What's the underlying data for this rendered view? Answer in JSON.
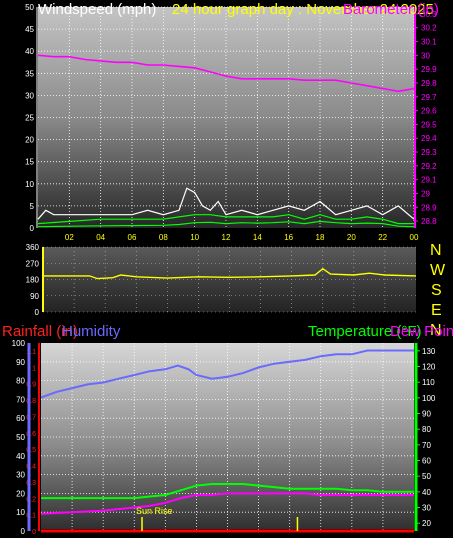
{
  "header": {
    "title_left": "Windspeed (mph)",
    "title_mid": "24 hour graph day : November 24 2025",
    "title_right": "Barometer (in)"
  },
  "compass": [
    "N",
    "W",
    "S",
    "E",
    "N"
  ],
  "lower_titles": {
    "rainfall": "Rainfall (in)",
    "humidity": "Humidity",
    "temperature": "Temperature (°F)",
    "dewpoint": "Dew Point"
  },
  "annotations": {
    "sunrise": "Sun Rise"
  },
  "colors": {
    "windspeed": "#ffffff",
    "gust_lines": "#00ff00",
    "barometer": "#ff00ff",
    "direction": "#ffff00",
    "rainfall": "#ff0000",
    "humidity": "#6a6aff",
    "temperature": "#00ff00",
    "dewpoint": "#ff00ff"
  },
  "chart_data": [
    {
      "type": "line",
      "name": "windspeed-barometer",
      "x_ticks": [
        "02",
        "04",
        "06",
        "08",
        "10",
        "12",
        "14",
        "16",
        "18",
        "20",
        "22",
        "00"
      ],
      "y_left_ticks": [
        0,
        5,
        10,
        15,
        20,
        25,
        30,
        35,
        40,
        45,
        50
      ],
      "y_left_range": [
        0,
        50
      ],
      "y_right_ticks": [
        28.8,
        28.9,
        29,
        29.1,
        29.2,
        29.3,
        29.4,
        29.5,
        29.6,
        29.7,
        29.8,
        29.9,
        30,
        30.1,
        30.2,
        30.3
      ],
      "y_right_range": [
        28.75,
        30.35
      ],
      "series": [
        {
          "axis": "right",
          "points": [
            [
              0,
              30.0
            ],
            [
              1,
              29.99
            ],
            [
              2,
              29.99
            ],
            [
              3,
              29.97
            ],
            [
              4,
              29.96
            ],
            [
              5,
              29.95
            ],
            [
              6,
              29.95
            ],
            [
              7,
              29.93
            ],
            [
              8,
              29.93
            ],
            [
              9,
              29.92
            ],
            [
              10,
              29.91
            ],
            [
              11,
              29.88
            ],
            [
              12,
              29.85
            ],
            [
              13,
              29.83
            ],
            [
              14,
              29.83
            ],
            [
              15,
              29.83
            ],
            [
              16,
              29.83
            ],
            [
              17,
              29.82
            ],
            [
              18,
              29.82
            ],
            [
              19,
              29.82
            ],
            [
              20,
              29.8
            ],
            [
              21,
              29.78
            ],
            [
              22,
              29.76
            ],
            [
              23,
              29.74
            ],
            [
              23.5,
              29.75
            ],
            [
              24,
              29.76
            ]
          ]
        },
        {
          "axis": "left",
          "points": [
            [
              0,
              2
            ],
            [
              0.5,
              4
            ],
            [
              1,
              3
            ],
            [
              2,
              3
            ],
            [
              3,
              3
            ],
            [
              4,
              3
            ],
            [
              5,
              3
            ],
            [
              6,
              3
            ],
            [
              7,
              4
            ],
            [
              8,
              3
            ],
            [
              9,
              4
            ],
            [
              9.5,
              9
            ],
            [
              10,
              8
            ],
            [
              10.5,
              5
            ],
            [
              11,
              4
            ],
            [
              11.5,
              6
            ],
            [
              12,
              3
            ],
            [
              13,
              4
            ],
            [
              14,
              3
            ],
            [
              15,
              4
            ],
            [
              16,
              5
            ],
            [
              17,
              4
            ],
            [
              18,
              6
            ],
            [
              19,
              3
            ],
            [
              20,
              4
            ],
            [
              21,
              5
            ],
            [
              22,
              3
            ],
            [
              22.5,
              4
            ],
            [
              23,
              5
            ],
            [
              24,
              2
            ]
          ]
        },
        {
          "axis": "left",
          "points": [
            [
              0,
              1
            ],
            [
              2,
              1.5
            ],
            [
              4,
              2
            ],
            [
              6,
              2
            ],
            [
              8,
              2
            ],
            [
              9,
              2.5
            ],
            [
              10,
              3
            ],
            [
              11,
              3
            ],
            [
              12,
              2.5
            ],
            [
              13,
              2.5
            ],
            [
              14,
              2.5
            ],
            [
              15,
              2.5
            ],
            [
              16,
              3
            ],
            [
              17,
              2
            ],
            [
              18,
              3
            ],
            [
              19,
              2
            ],
            [
              20,
              2
            ],
            [
              21,
              2.5
            ],
            [
              22,
              2
            ],
            [
              23,
              1
            ],
            [
              24,
              1
            ]
          ]
        },
        {
          "axis": "left",
          "points": [
            [
              0,
              0.3
            ],
            [
              4,
              0.5
            ],
            [
              8,
              0.6
            ],
            [
              9,
              0.8
            ],
            [
              10,
              1.2
            ],
            [
              11,
              1.3
            ],
            [
              12,
              1
            ],
            [
              13,
              1.2
            ],
            [
              14,
              1.1
            ],
            [
              15,
              1.2
            ],
            [
              16,
              1.4
            ],
            [
              17,
              1
            ],
            [
              18,
              1.5
            ],
            [
              19,
              1.2
            ],
            [
              20,
              1
            ],
            [
              21,
              1.1
            ],
            [
              22,
              1
            ],
            [
              23,
              0.4
            ],
            [
              24,
              0.3
            ]
          ]
        }
      ]
    },
    {
      "type": "line",
      "name": "wind-direction",
      "y_ticks": [
        0,
        90,
        180,
        270,
        360
      ],
      "y_range": [
        0,
        360
      ],
      "series": [
        {
          "points": [
            [
              0,
              200
            ],
            [
              3,
              200
            ],
            [
              3.5,
              185
            ],
            [
              4.5,
              190
            ],
            [
              5,
              205
            ],
            [
              6,
              195
            ],
            [
              8,
              188
            ],
            [
              10,
              195
            ],
            [
              12,
              192
            ],
            [
              14,
              195
            ],
            [
              16,
              200
            ],
            [
              17.5,
              205
            ],
            [
              18,
              240
            ],
            [
              18.5,
              210
            ],
            [
              20,
              205
            ],
            [
              21,
              215
            ],
            [
              22,
              205
            ],
            [
              24,
              200
            ]
          ]
        }
      ]
    },
    {
      "type": "line",
      "name": "rain-humidity-temperature-dewpoint",
      "y_humidity_ticks": [
        0,
        10,
        20,
        30,
        40,
        50,
        60,
        70,
        80,
        90,
        100
      ],
      "y_humidity_range": [
        0,
        100
      ],
      "y_rain_ticks": [
        0,
        0.1,
        0.2,
        0.3,
        0.4,
        0.5,
        0.6,
        0.7,
        0.8,
        0.9,
        1,
        1.1
      ],
      "y_temp_ticks": [
        20,
        30,
        40,
        50,
        60,
        70,
        80,
        90,
        100,
        110,
        120,
        130
      ],
      "y_temp_range": [
        15,
        135
      ],
      "series": [
        {
          "axis": "humidity",
          "points": [
            [
              0,
              71
            ],
            [
              1,
              74
            ],
            [
              2,
              76
            ],
            [
              3,
              78
            ],
            [
              4,
              79
            ],
            [
              5,
              81
            ],
            [
              6,
              83
            ],
            [
              7,
              85
            ],
            [
              8,
              86
            ],
            [
              8.8,
              88
            ],
            [
              9.5,
              86
            ],
            [
              10,
              83
            ],
            [
              11,
              81
            ],
            [
              12,
              82
            ],
            [
              13,
              84
            ],
            [
              14,
              87
            ],
            [
              15,
              89
            ],
            [
              16,
              90
            ],
            [
              17,
              91
            ],
            [
              18,
              93
            ],
            [
              19,
              94
            ],
            [
              20,
              94
            ],
            [
              21,
              96
            ],
            [
              22,
              96
            ],
            [
              23,
              96
            ],
            [
              24,
              96
            ]
          ]
        },
        {
          "axis": "temperature",
          "points": [
            [
              0,
              36
            ],
            [
              2,
              36
            ],
            [
              4,
              36
            ],
            [
              6,
              36
            ],
            [
              7,
              37
            ],
            [
              8,
              38
            ],
            [
              9,
              41
            ],
            [
              10,
              44
            ],
            [
              11,
              45
            ],
            [
              12,
              45
            ],
            [
              13,
              45
            ],
            [
              14,
              44
            ],
            [
              15,
              43
            ],
            [
              16,
              42
            ],
            [
              17,
              42
            ],
            [
              18,
              42
            ],
            [
              19,
              42
            ],
            [
              20,
              41
            ],
            [
              21,
              41
            ],
            [
              22,
              40
            ],
            [
              23,
              40
            ],
            [
              24,
              40
            ]
          ]
        },
        {
          "axis": "temperature",
          "points": [
            [
              0,
              26
            ],
            [
              2,
              27
            ],
            [
              4,
              28
            ],
            [
              6,
              30
            ],
            [
              7,
              31
            ],
            [
              8,
              33
            ],
            [
              9,
              36
            ],
            [
              10,
              38
            ],
            [
              11,
              38
            ],
            [
              12,
              39
            ],
            [
              13,
              39
            ],
            [
              14,
              39
            ],
            [
              15,
              39
            ],
            [
              16,
              39
            ],
            [
              17,
              39
            ],
            [
              18,
              38
            ],
            [
              19,
              38
            ],
            [
              20,
              38
            ],
            [
              21,
              38
            ],
            [
              22,
              38
            ],
            [
              23,
              38
            ],
            [
              24,
              38
            ]
          ]
        },
        {
          "axis": "rain",
          "points": [
            [
              0,
              0
            ],
            [
              24,
              0
            ]
          ]
        }
      ],
      "markers_hours": [
        6.5,
        16.5
      ]
    }
  ]
}
